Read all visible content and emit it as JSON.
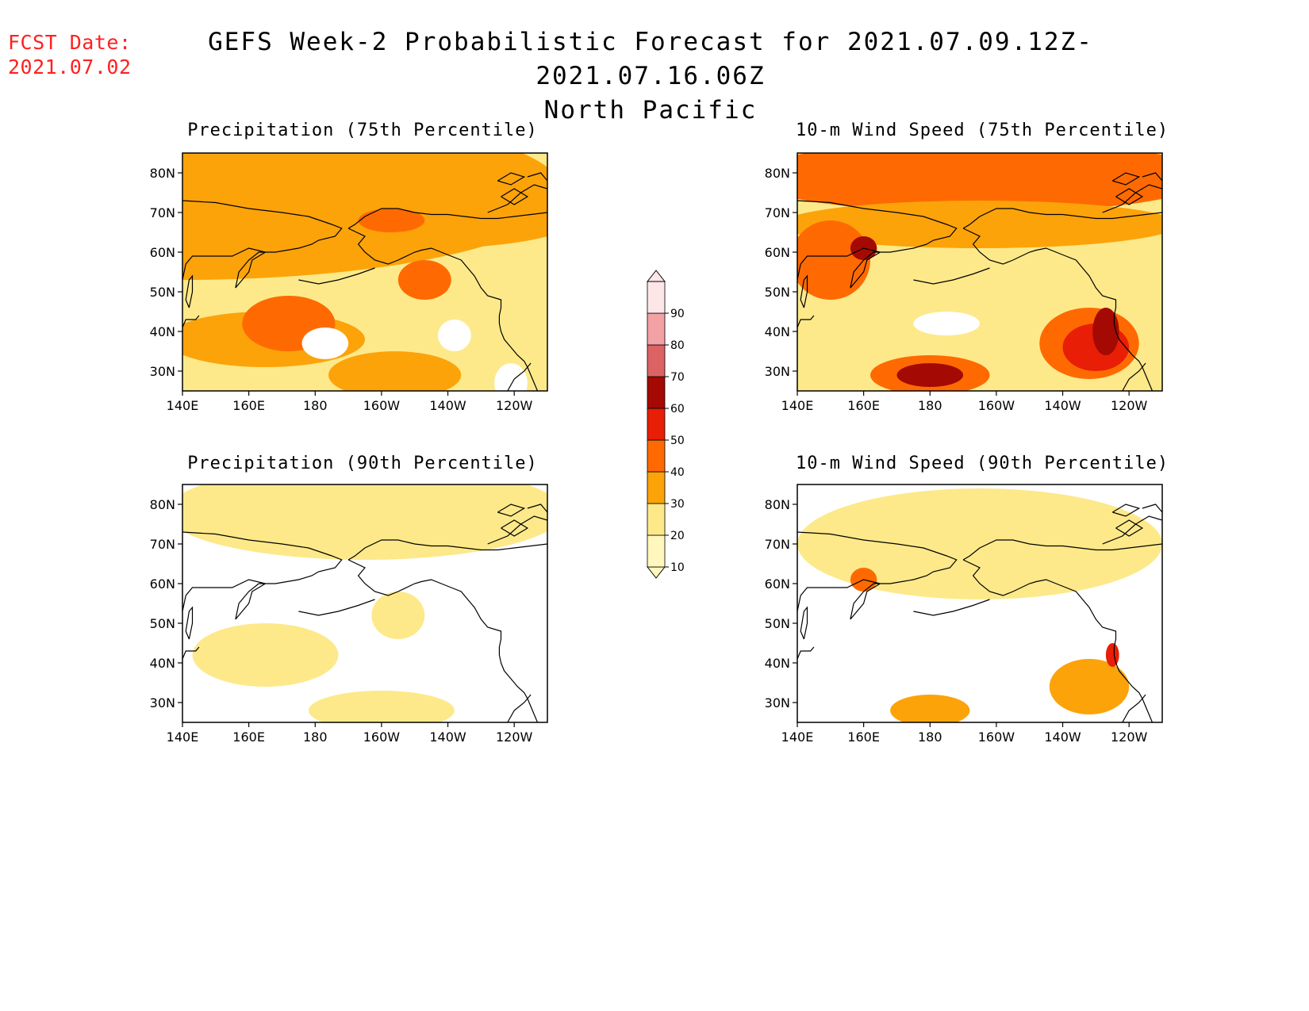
{
  "header": {
    "fcst_label": "FCST Date:",
    "fcst_date": "2021.07.02",
    "title_line1": "GEFS Week-2 Probabilistic Forecast for 2021.07.09.12Z-2021.07.16.06Z",
    "title_line2": "North Pacific"
  },
  "panels": [
    {
      "title": "Precipitation (75th Percentile)",
      "field": "precip",
      "percentile": 75
    },
    {
      "title": "10-m Wind Speed (75th Percentile)",
      "field": "wind",
      "percentile": 75
    },
    {
      "title": "Precipitation (90th Percentile)",
      "field": "precip",
      "percentile": 90
    },
    {
      "title": "10-m Wind Speed (90th Percentile)",
      "field": "wind",
      "percentile": 90
    }
  ],
  "axes": {
    "lat_ticks": [
      "80N",
      "70N",
      "60N",
      "50N",
      "40N",
      "30N"
    ],
    "lon_ticks": [
      "140E",
      "160E",
      "180",
      "160W",
      "140W",
      "120W"
    ],
    "lat_range": [
      25,
      85
    ],
    "lon_range_east": [
      140,
      250
    ]
  },
  "colorbar": {
    "levels": [
      "10",
      "20",
      "30",
      "40",
      "50",
      "60",
      "70",
      "80",
      "90"
    ],
    "colors": [
      "#fff7bc",
      "#fde98a",
      "#fca30a",
      "#fe6a01",
      "#e81e07",
      "#a40a03",
      "#dc6363",
      "#f2a2a5",
      "#fde6e8"
    ]
  }
}
